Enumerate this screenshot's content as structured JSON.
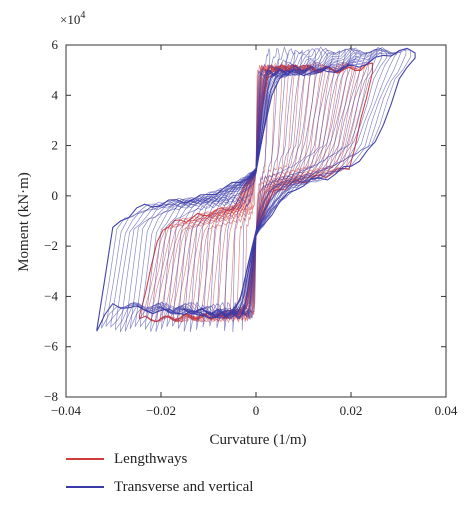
{
  "chart_data": {
    "type": "line",
    "title": "",
    "xlabel": "Curvature (1/m)",
    "ylabel": "Moment (kN·m)",
    "y_multiplier_label": "×10",
    "y_multiplier_exp": "4",
    "xlim": [
      -0.04,
      0.04
    ],
    "ylim": [
      -8,
      6
    ],
    "x_ticks": [
      -0.04,
      -0.02,
      0,
      0.02,
      0.04
    ],
    "x_tick_labels": [
      "−0.04",
      "−0.02",
      "0",
      "0.02",
      "0.04"
    ],
    "y_ticks": [
      -8,
      -6,
      -4,
      -2,
      0,
      2,
      4,
      6
    ],
    "y_tick_labels": [
      "−8",
      "−6",
      "−4",
      "−2",
      "0",
      "2",
      "4",
      "6"
    ],
    "grid": false,
    "legend_position": "bottom",
    "series": [
      {
        "name": "Lengthways",
        "color": "#d43a3a",
        "envelope": {
          "x": [
            -0.0245,
            -0.02,
            -0.016,
            -0.012,
            -0.008,
            -0.004,
            -0.002,
            0,
            0.002,
            0.004,
            0.008,
            0.012,
            0.016,
            0.02,
            0.0245
          ],
          "y_upper": [
            -4.7,
            -1.3,
            -1.0,
            -0.8,
            -0.6,
            -0.4,
            0.6,
            1.0,
            4.6,
            5.0,
            5.1,
            5.1,
            5.0,
            5.0,
            5.2
          ],
          "y_lower": [
            -4.9,
            -4.9,
            -4.8,
            -4.8,
            -4.7,
            -4.6,
            -4.3,
            -1.5,
            -0.5,
            0.2,
            0.5,
            0.7,
            0.9,
            1.2,
            5.0
          ]
        }
      },
      {
        "name": "Transverse and vertical",
        "color": "#3a3aa8",
        "envelope": {
          "x": [
            -0.0335,
            -0.03,
            -0.025,
            -0.02,
            -0.016,
            -0.012,
            -0.008,
            -0.004,
            0,
            0.004,
            0.008,
            0.012,
            0.016,
            0.02,
            0.025,
            0.03,
            0.0335
          ],
          "y_upper": [
            -5.2,
            -1.2,
            -0.5,
            -0.3,
            -0.2,
            -0.1,
            0.2,
            0.5,
            1.0,
            4.7,
            4.9,
            4.9,
            5.0,
            5.1,
            5.4,
            5.8,
            5.7
          ],
          "y_lower": [
            -5.3,
            -4.3,
            -4.5,
            -4.6,
            -4.6,
            -4.7,
            -4.8,
            -4.5,
            -1.5,
            -0.5,
            0.3,
            0.6,
            0.8,
            1.2,
            2.0,
            4.5,
            5.6
          ]
        }
      }
    ]
  }
}
